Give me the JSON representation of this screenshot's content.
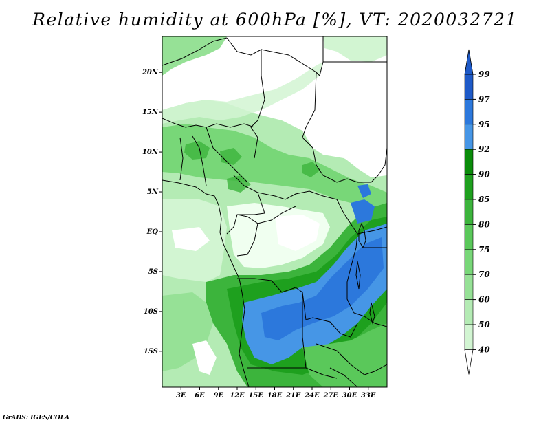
{
  "title": "Relative humidity at 600hPa [%], VT: 2020032721",
  "credit": "GrADS: IGES/COLA",
  "map": {
    "lon_range": [
      0,
      36
    ],
    "lat_range": [
      -19.5,
      24.5
    ],
    "lon_ticks": [
      "3E",
      "6E",
      "9E",
      "12E",
      "15E",
      "18E",
      "21E",
      "24E",
      "27E",
      "30E",
      "33E"
    ],
    "lat_ticks": [
      "20N",
      "15N",
      "10N",
      "5N",
      "EQ",
      "5S",
      "10S",
      "15S"
    ]
  },
  "colorbar": {
    "levels": [
      "40",
      "50",
      "60",
      "70",
      "75",
      "80",
      "85",
      "90",
      "92",
      "95",
      "97",
      "99"
    ],
    "colors": [
      "#f0fff0",
      "#d2f5d2",
      "#b4ebb4",
      "#96e196",
      "#78d778",
      "#5ac85a",
      "#3cb43c",
      "#1ea01e",
      "#0a8c0a",
      "#4696e6",
      "#2c78dc",
      "#1e5ac8"
    ],
    "extend_below": "#ffffff",
    "extend_above": "#1e5ac8"
  },
  "colors": {
    "background": "#ffffff",
    "border": "#000000"
  }
}
